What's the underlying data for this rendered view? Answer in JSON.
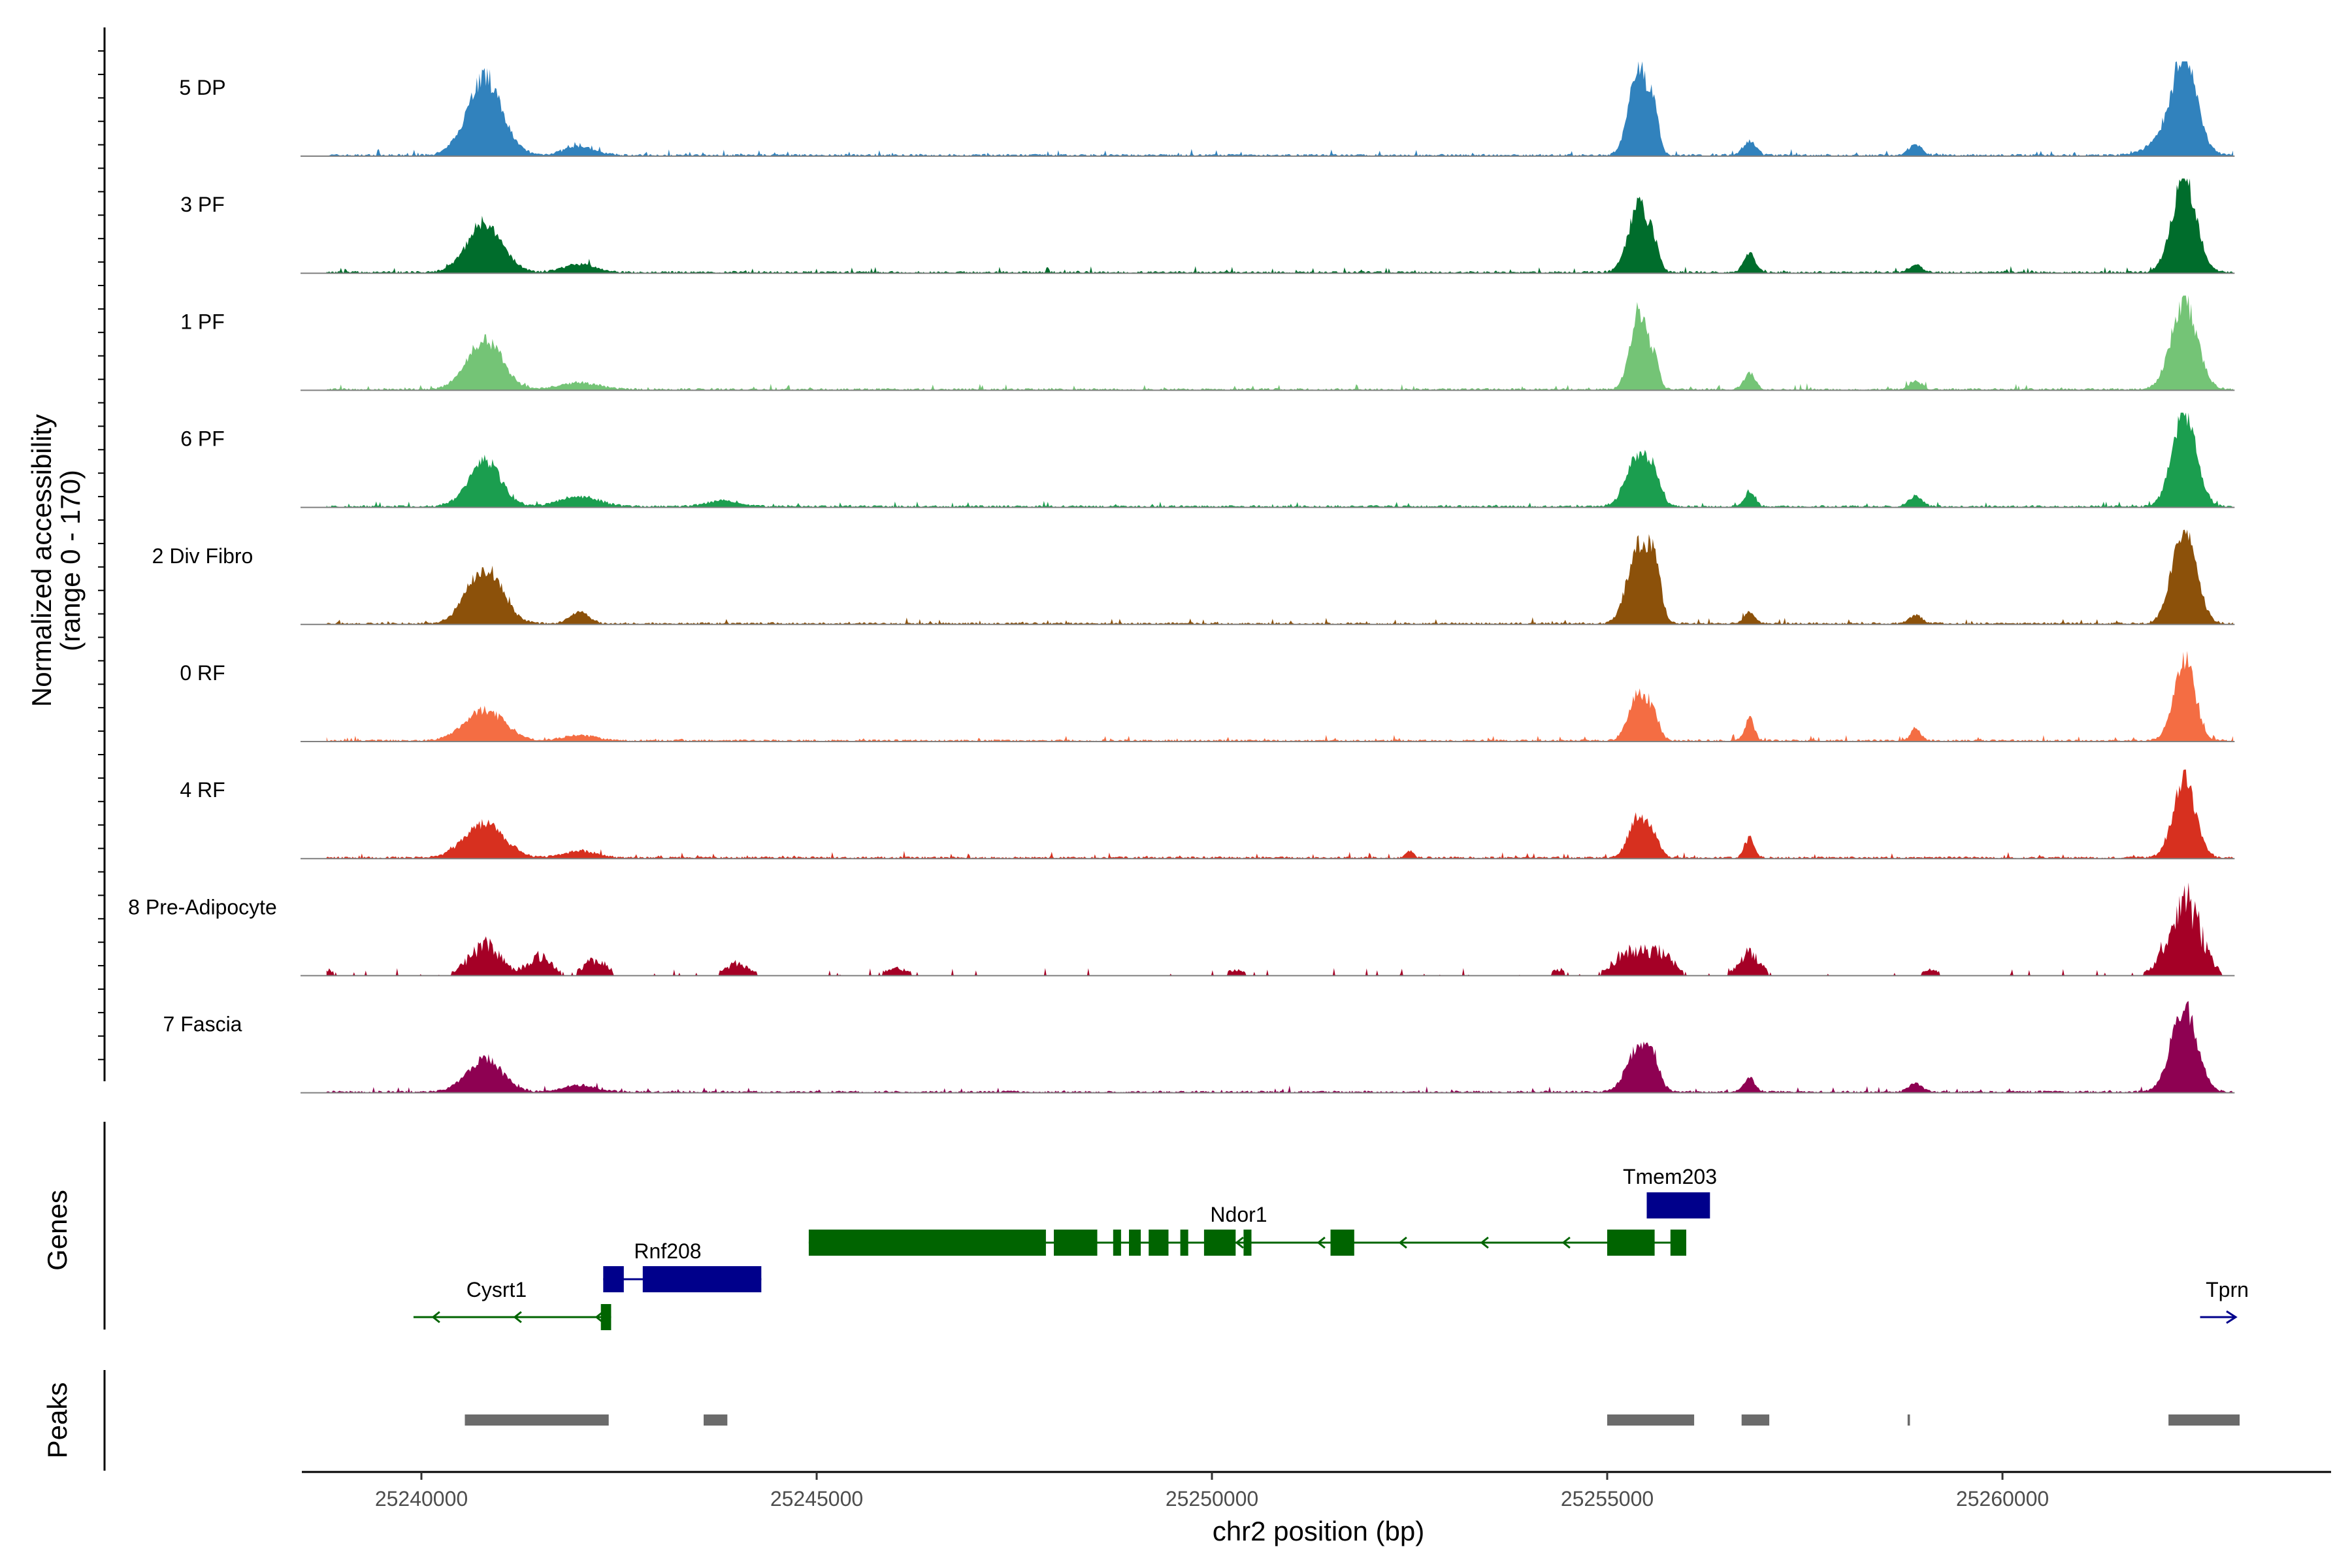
{
  "chart_data": {
    "type": "area",
    "genome_range": [
      25238400,
      25263900
    ],
    "x_ticks": [
      25240000,
      25245000,
      25250000,
      25255000,
      25260000
    ],
    "x_tick_labels": [
      "25240000",
      "25245000",
      "25250000",
      "25255000",
      "25260000"
    ],
    "xlabel": "chr2 position (bp)",
    "ylabel": "Normalized accessibility",
    "ylabel_range": "(range 0 - 170)",
    "y_range": [
      0,
      170
    ],
    "tracks": [
      {
        "name": "5 DP",
        "color": "#3182bd",
        "peaks": [
          [
            25240800,
            140,
            220
          ],
          [
            25255400,
            160,
            120
          ],
          [
            25255600,
            55,
            60
          ],
          [
            25256800,
            25,
            80
          ],
          [
            25258900,
            20,
            80
          ],
          [
            25262300,
            170,
            160
          ],
          [
            25262000,
            20,
            200
          ],
          [
            25242000,
            15,
            200
          ]
        ]
      },
      {
        "name": "3 PF",
        "color": "#006d2c",
        "peaks": [
          [
            25240800,
            90,
            220
          ],
          [
            25255400,
            120,
            130
          ],
          [
            25255600,
            30,
            60
          ],
          [
            25256800,
            35,
            70
          ],
          [
            25258900,
            15,
            80
          ],
          [
            25262300,
            170,
            150
          ],
          [
            25242000,
            15,
            200
          ]
        ]
      },
      {
        "name": "1 PF",
        "color": "#74c476",
        "peaks": [
          [
            25240800,
            90,
            220
          ],
          [
            25255400,
            140,
            110
          ],
          [
            25255600,
            40,
            60
          ],
          [
            25256800,
            30,
            70
          ],
          [
            25258900,
            15,
            80
          ],
          [
            25262300,
            160,
            160
          ],
          [
            25242000,
            12,
            250
          ]
        ]
      },
      {
        "name": "6 PF",
        "color": "#1b9e4f",
        "peaks": [
          [
            25240800,
            85,
            200
          ],
          [
            25255400,
            90,
            150
          ],
          [
            25255600,
            35,
            80
          ],
          [
            25256800,
            25,
            70
          ],
          [
            25258900,
            20,
            80
          ],
          [
            25262300,
            170,
            150
          ],
          [
            25242000,
            18,
            250
          ],
          [
            25243800,
            10,
            200
          ]
        ]
      },
      {
        "name": "2 Div Fibro",
        "color": "#8c510a",
        "peaks": [
          [
            25240800,
            100,
            220
          ],
          [
            25255400,
            140,
            140
          ],
          [
            25255600,
            80,
            80
          ],
          [
            25256800,
            20,
            70
          ],
          [
            25258900,
            15,
            80
          ],
          [
            25262300,
            170,
            150
          ],
          [
            25242000,
            20,
            120
          ]
        ]
      },
      {
        "name": "0 RF",
        "color": "#f46d43",
        "peaks": [
          [
            25240800,
            55,
            250
          ],
          [
            25255400,
            85,
            120
          ],
          [
            25255600,
            35,
            70
          ],
          [
            25256800,
            40,
            60
          ],
          [
            25258900,
            25,
            60
          ],
          [
            25262300,
            150,
            130
          ],
          [
            25242000,
            10,
            200
          ]
        ]
      },
      {
        "name": "4 RF",
        "color": "#d7301f",
        "peaks": [
          [
            25240800,
            60,
            250
          ],
          [
            25255400,
            75,
            120
          ],
          [
            25255600,
            25,
            80
          ],
          [
            25256800,
            35,
            60
          ],
          [
            25262300,
            140,
            140
          ],
          [
            25242000,
            12,
            200
          ],
          [
            25252500,
            12,
            50
          ]
        ]
      },
      {
        "name": "8 Pre-Adipocyte",
        "color": "#a50026",
        "peaks": [
          [
            25240800,
            60,
            200
          ],
          [
            25241500,
            40,
            150
          ],
          [
            25242200,
            30,
            150
          ],
          [
            25244000,
            25,
            150
          ],
          [
            25246000,
            15,
            150
          ],
          [
            25255300,
            50,
            200
          ],
          [
            25255700,
            40,
            150
          ],
          [
            25256800,
            45,
            130
          ],
          [
            25262300,
            150,
            200
          ],
          [
            25238800,
            12,
            100
          ],
          [
            25250300,
            12,
            100
          ],
          [
            25254400,
            12,
            100
          ],
          [
            25259100,
            12,
            100
          ]
        ]
      },
      {
        "name": "7 Fascia",
        "color": "#8e0152",
        "peaks": [
          [
            25240800,
            60,
            220
          ],
          [
            25255400,
            80,
            150
          ],
          [
            25255600,
            30,
            80
          ],
          [
            25256800,
            25,
            70
          ],
          [
            25258900,
            15,
            80
          ],
          [
            25262300,
            150,
            160
          ],
          [
            25242000,
            12,
            200
          ]
        ]
      }
    ],
    "genes_panel_title": "Genes",
    "genes": [
      {
        "name": "Cysrt1",
        "strand": "-",
        "color": "#006400",
        "start": 25239900,
        "end": 25242400,
        "row": 2,
        "exons": [
          [
            25242270,
            25242400
          ]
        ]
      },
      {
        "name": "Rnf208",
        "strand": "+",
        "color": "#00008b",
        "start": 25242300,
        "end": 25244300,
        "row": 1,
        "exons": [
          [
            25242300,
            25242560
          ],
          [
            25242800,
            25244300
          ]
        ]
      },
      {
        "name": "Ndor1",
        "strand": "-",
        "color": "#006400",
        "start": 25244900,
        "end": 25255900,
        "row": 0,
        "exons": [
          [
            25244900,
            25247900
          ],
          [
            25248000,
            25248550
          ],
          [
            25248750,
            25248850
          ],
          [
            25248950,
            25249100
          ],
          [
            25249200,
            25249450
          ],
          [
            25249600,
            25249700
          ],
          [
            25249900,
            25250300
          ],
          [
            25250400,
            25250500
          ],
          [
            25251500,
            25251800
          ],
          [
            25255000,
            25255600
          ],
          [
            25255800,
            25256000
          ]
        ]
      },
      {
        "name": "Tmem203",
        "strand": "+",
        "color": "#00008b",
        "start": 25255500,
        "end": 25256300,
        "row": -1,
        "exons": [
          [
            25255500,
            25256300
          ]
        ]
      },
      {
        "name": "Tprn",
        "strand": "+",
        "color": "#00008b",
        "start": 25262500,
        "end": 25262950,
        "row": 2,
        "exons": []
      }
    ],
    "peaks_panel_title": "Peaks",
    "peak_regions": [
      [
        25240550,
        25242370
      ],
      [
        25243570,
        25243870
      ],
      [
        25255000,
        25256100
      ],
      [
        25256700,
        25257050
      ],
      [
        25258800,
        25258830
      ],
      [
        25262100,
        25263000
      ]
    ],
    "peak_color": "#6b6b6b"
  }
}
